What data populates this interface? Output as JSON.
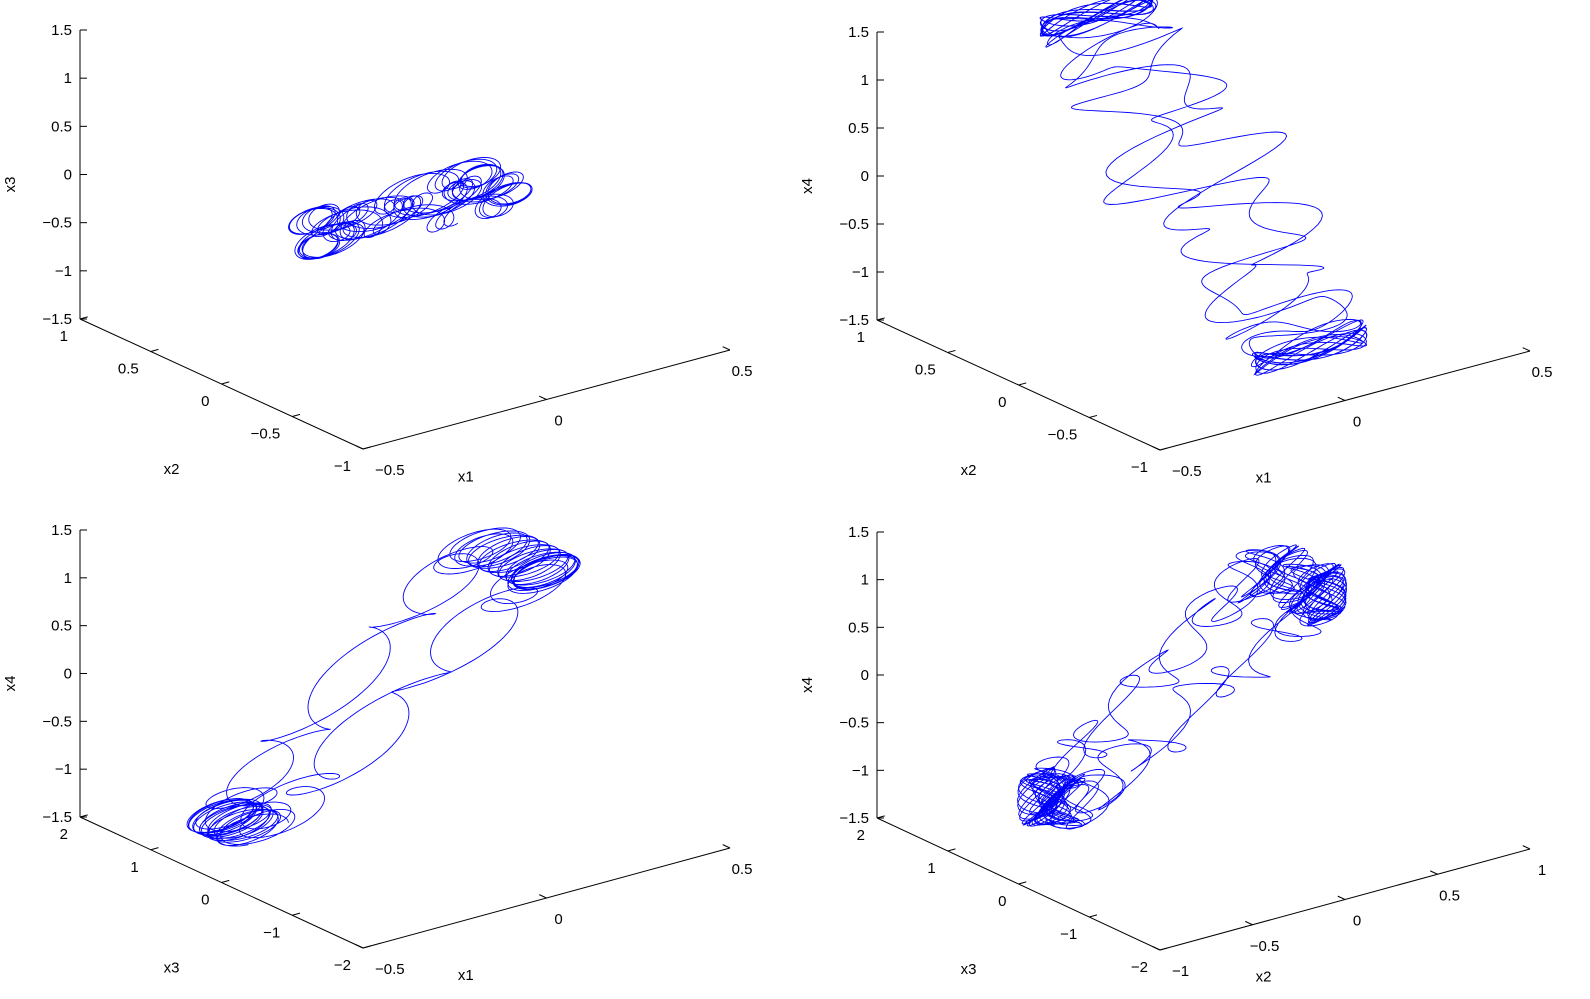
{
  "chart_data": [
    {
      "type": "line",
      "projection": "3d",
      "title": "",
      "xlabel": "x1",
      "ylabel": "x2",
      "zlabel": "x3",
      "xlim": [
        -0.5,
        0.5
      ],
      "ylim": [
        -1,
        1
      ],
      "zlim": [
        -1.5,
        1.5
      ],
      "x_ticks": [
        {
          "v": -0.5,
          "label": "−0.5"
        },
        {
          "v": 0,
          "label": "0"
        },
        {
          "v": 0.5,
          "label": "0.5"
        }
      ],
      "y_ticks": [
        {
          "v": -1,
          "label": "−1"
        },
        {
          "v": -0.5,
          "label": "−0.5"
        },
        {
          "v": 0,
          "label": "0"
        },
        {
          "v": 0.5,
          "label": "0.5"
        },
        {
          "v": 1,
          "label": "1"
        }
      ],
      "z_ticks": [
        {
          "v": -1.5,
          "label": "−1.5"
        },
        {
          "v": -1,
          "label": "−1"
        },
        {
          "v": -0.5,
          "label": "−0.5"
        },
        {
          "v": 0,
          "label": "0"
        },
        {
          "v": 0.5,
          "label": "0.5"
        },
        {
          "v": 1,
          "label": "1"
        },
        {
          "v": 1.5,
          "label": "1.5"
        }
      ],
      "trajectory": {
        "pattern": "loops",
        "x_center": 0.0,
        "x_amp": 0.25,
        "y_center": 0.0,
        "y_amp": 0.1,
        "z_center": -0.2,
        "z_amp": 0.25,
        "loop_radius_x": 0.06,
        "loop_radius_z": 0.13,
        "samples": 2600
      },
      "grid": false,
      "color": "#0000ff"
    },
    {
      "type": "line",
      "projection": "3d",
      "title": "",
      "xlabel": "x1",
      "ylabel": "x2",
      "zlabel": "x4",
      "xlim": [
        -0.5,
        0.5
      ],
      "ylim": [
        -1,
        1
      ],
      "zlim": [
        -1.5,
        1.5
      ],
      "x_ticks": [
        {
          "v": -0.5,
          "label": "−0.5"
        },
        {
          "v": 0,
          "label": "0"
        },
        {
          "v": 0.5,
          "label": "0.5"
        }
      ],
      "y_ticks": [
        {
          "v": -1,
          "label": "−1"
        },
        {
          "v": -0.5,
          "label": "−0.5"
        },
        {
          "v": 0,
          "label": "0"
        },
        {
          "v": 0.5,
          "label": "0.5"
        },
        {
          "v": 1,
          "label": "1"
        }
      ],
      "z_ticks": [
        {
          "v": -1.5,
          "label": "−1.5"
        },
        {
          "v": -1,
          "label": "−1"
        },
        {
          "v": -0.5,
          "label": "−0.5"
        },
        {
          "v": 0,
          "label": "0"
        },
        {
          "v": 0.5,
          "label": "0.5"
        },
        {
          "v": 1,
          "label": "1"
        },
        {
          "v": 1.5,
          "label": "1.5"
        }
      ],
      "trajectory": {
        "pattern": "zigzag",
        "x_center": 0.0,
        "x_amp": 0.15,
        "y_center": 0.0,
        "y_amp": 0.85,
        "z_center": 0.1,
        "z_amp": 1.4,
        "loop_radius_x": 0.12,
        "loop_radius_z": 0.1,
        "samples": 2600
      },
      "grid": false,
      "color": "#0000ff"
    },
    {
      "type": "line",
      "projection": "3d",
      "title": "",
      "xlabel": "x1",
      "ylabel": "x3",
      "zlabel": "x4",
      "xlim": [
        -0.5,
        0.5
      ],
      "ylim": [
        -2,
        2
      ],
      "zlim": [
        -1.5,
        1.5
      ],
      "x_ticks": [
        {
          "v": -0.5,
          "label": "−0.5"
        },
        {
          "v": 0,
          "label": "0"
        },
        {
          "v": 0.5,
          "label": "0.5"
        }
      ],
      "y_ticks": [
        {
          "v": -2,
          "label": "−2"
        },
        {
          "v": -1,
          "label": "−1"
        },
        {
          "v": 0,
          "label": "0"
        },
        {
          "v": 1,
          "label": "1"
        },
        {
          "v": 2,
          "label": "2"
        }
      ],
      "z_ticks": [
        {
          "v": -1.5,
          "label": "−1.5"
        },
        {
          "v": -1,
          "label": "−1"
        },
        {
          "v": -0.5,
          "label": "−0.5"
        },
        {
          "v": 0,
          "label": "0"
        },
        {
          "v": 0.5,
          "label": "0.5"
        },
        {
          "v": 1,
          "label": "1"
        },
        {
          "v": 1.5,
          "label": "1.5"
        }
      ],
      "trajectory": {
        "pattern": "stepped-loops",
        "x_center": 0.0,
        "x_amp": 0.35,
        "y_center": 0.3,
        "y_amp": 0.5,
        "z_center": -0.15,
        "z_amp": 1.2,
        "loop_radius_x": 0.06,
        "loop_radius_z": 0.15,
        "samples": 2600
      },
      "grid": false,
      "color": "#0000ff"
    },
    {
      "type": "line",
      "projection": "3d",
      "title": "",
      "xlabel": "x2",
      "ylabel": "x3",
      "zlabel": "x4",
      "xlim": [
        -1,
        1
      ],
      "ylim": [
        -2,
        2
      ],
      "zlim": [
        -1.5,
        1.5
      ],
      "x_ticks": [
        {
          "v": -1,
          "label": "−1"
        },
        {
          "v": -0.5,
          "label": "−0.5"
        },
        {
          "v": 0,
          "label": "0"
        },
        {
          "v": 0.5,
          "label": "0.5"
        },
        {
          "v": 1,
          "label": "1"
        }
      ],
      "y_ticks": [
        {
          "v": -2,
          "label": "−2"
        },
        {
          "v": -1,
          "label": "−1"
        },
        {
          "v": 0,
          "label": "0"
        },
        {
          "v": 1,
          "label": "1"
        },
        {
          "v": 2,
          "label": "2"
        }
      ],
      "z_ticks": [
        {
          "v": -1.5,
          "label": "−1.5"
        },
        {
          "v": -1,
          "label": "−1"
        },
        {
          "v": -0.5,
          "label": "−0.5"
        },
        {
          "v": 0,
          "label": "0"
        },
        {
          "v": 0.5,
          "label": "0.5"
        },
        {
          "v": 1,
          "label": "1"
        },
        {
          "v": 1.5,
          "label": "1.5"
        }
      ],
      "trajectory": {
        "pattern": "stepped-zigzag",
        "x_center": 0.0,
        "x_amp": 0.6,
        "y_center": 0.3,
        "y_amp": 0.5,
        "z_center": -0.15,
        "z_amp": 1.0,
        "loop_radius_x": 0.1,
        "loop_radius_z": 0.12,
        "samples": 2600
      },
      "grid": false,
      "color": "#0000ff"
    }
  ]
}
